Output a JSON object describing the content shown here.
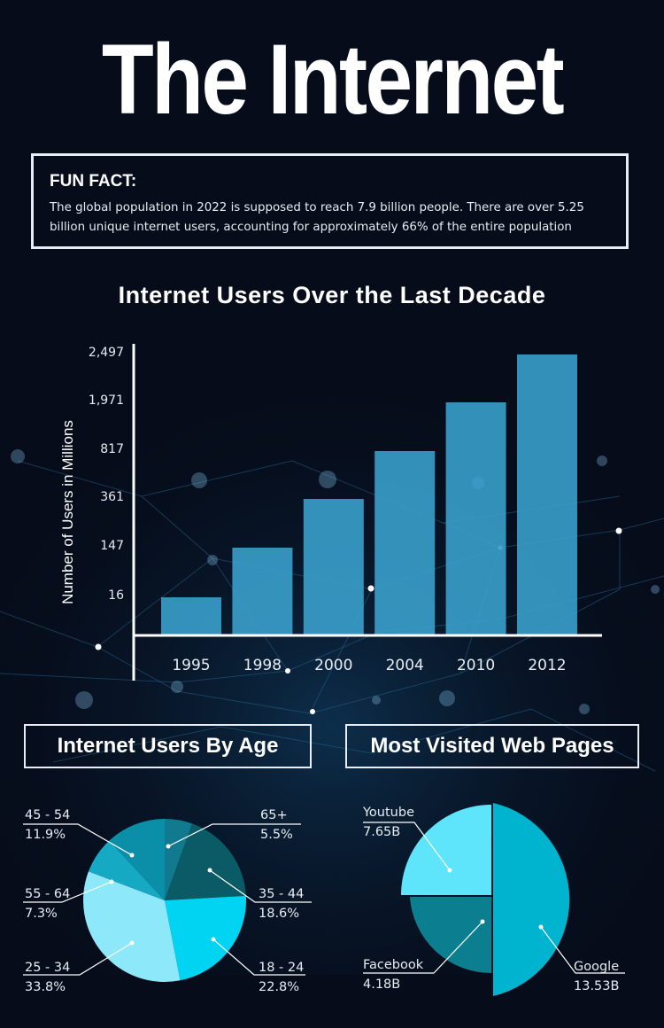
{
  "title": "The Internet",
  "fun_fact": {
    "heading": "FUN FACT:",
    "line1": "The global population in 2022 is supposed to reach 7.9 billion people. There are over 5.25",
    "line2": "billion unique internet users, accounting for approximately 66% of the entire population"
  },
  "colors": {
    "background": "#060c1a",
    "bar": "#3aa3cf",
    "text": "#ffffff"
  },
  "chart_data": [
    {
      "type": "bar",
      "title": "Internet Users Over the Last Decade",
      "ylabel": "Number of Users in Millions",
      "xlabel": "",
      "categories": [
        "1995",
        "1998",
        "2000",
        "2004",
        "2010",
        "2012"
      ],
      "values": [
        16,
        147,
        361,
        817,
        1971,
        2497
      ],
      "ytick_labels": [
        "16",
        "147",
        "361",
        "817",
        "1,971",
        "2,497"
      ],
      "grid": false
    },
    {
      "type": "pie",
      "title": "Internet Users By Age",
      "slices": [
        {
          "label": "65+",
          "value_text": "5.5%",
          "value": 5.5,
          "color": "#127a8f"
        },
        {
          "label": "35 - 44",
          "value_text": "18.6%",
          "value": 18.6,
          "color": "#0a5b66"
        },
        {
          "label": "18 - 24",
          "value_text": "22.8%",
          "value": 22.8,
          "color": "#00d4f2"
        },
        {
          "label": "25 - 34",
          "value_text": "33.8%",
          "value": 33.8,
          "color": "#8de9fa"
        },
        {
          "label": "55 - 64",
          "value_text": "7.3%",
          "value": 7.3,
          "color": "#16a9c4"
        },
        {
          "label": "45 - 54",
          "value_text": "11.9%",
          "value": 11.9,
          "color": "#0b8fa8"
        }
      ]
    },
    {
      "type": "pie",
      "title": "Most Visited Web Pages",
      "slices": [
        {
          "label": "Google",
          "value_text": "13.53B",
          "value": 13.53,
          "color": "#00b4d0"
        },
        {
          "label": "Facebook",
          "value_text": "4.18B",
          "value": 4.18,
          "color": "#0b7f90"
        },
        {
          "label": "Youtube",
          "value_text": "7.65B",
          "value": 7.65,
          "color": "#5fe5fb"
        }
      ]
    }
  ]
}
